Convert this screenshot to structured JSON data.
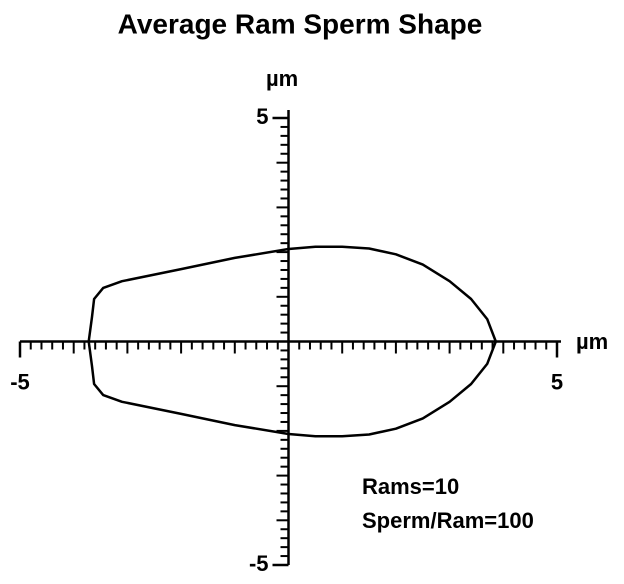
{
  "chart_data": {
    "type": "line",
    "title": "Average Ram Sperm Shape",
    "x_label": "µm",
    "y_label": "µm",
    "x": [
      -3.72,
      -3.66,
      -3.62,
      -3.45,
      -3.1,
      -2.0,
      -1.0,
      0,
      0.5,
      1.0,
      1.5,
      2.0,
      2.5,
      3.0,
      3.4,
      3.7,
      3.86,
      3.7,
      3.4,
      3.0,
      2.5,
      2.0,
      1.5,
      1.0,
      0.5,
      0,
      -1.0,
      -2.0,
      -3.1,
      -3.45,
      -3.62,
      -3.66
    ],
    "values": [
      0,
      0.55,
      0.95,
      1.2,
      1.35,
      1.62,
      1.87,
      2.07,
      2.12,
      2.12,
      2.08,
      1.95,
      1.72,
      1.35,
      0.95,
      0.5,
      0,
      -0.5,
      -0.95,
      -1.35,
      -1.72,
      -1.95,
      -2.08,
      -2.12,
      -2.12,
      -2.07,
      -1.87,
      -1.62,
      -1.35,
      -1.2,
      -0.95,
      -0.55
    ],
    "closed": true,
    "color": "#000000",
    "xlim": [
      -5,
      5
    ],
    "ylim": [
      -5,
      5
    ],
    "xticks": [
      -5,
      5
    ],
    "yticks": [
      -5,
      5
    ],
    "minor_tick_step": 0.2,
    "annotations": [
      "Rams=10",
      "Sperm/Ram=100"
    ]
  }
}
